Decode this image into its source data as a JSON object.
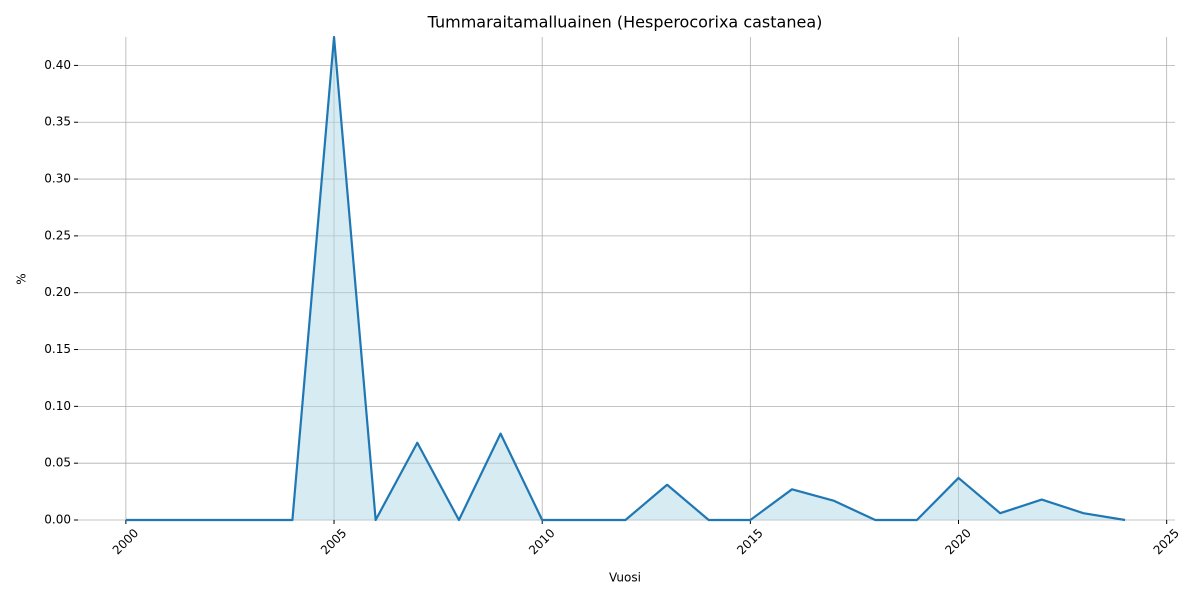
{
  "chart_data": {
    "type": "line",
    "title": "Tummaraitamalluainen (Hesperocorixa castanea)",
    "x_label": "Vuosi",
    "y_label": "%",
    "x": [
      2000,
      2001,
      2002,
      2003,
      2004,
      2005,
      2006,
      2007,
      2008,
      2009,
      2010,
      2011,
      2012,
      2013,
      2014,
      2015,
      2016,
      2017,
      2018,
      2019,
      2020,
      2021,
      2022,
      2023,
      2024
    ],
    "series": [
      {
        "color": "#1f77b4",
        "fill_color": "#add8e6",
        "values": [
          0,
          0,
          0,
          0,
          0,
          0.425,
          0,
          0.068,
          0,
          0.076,
          0,
          0,
          0,
          0.031,
          0,
          0,
          0.027,
          0.017,
          0,
          0,
          0.037,
          0.006,
          0.018,
          0.006,
          0
        ]
      }
    ],
    "xlim": [
      1998.85,
      2025.2
    ],
    "xticks": [
      2000,
      2005,
      2010,
      2015,
      2020,
      2025
    ],
    "ylim": [
      0,
      0.425
    ],
    "yticks": [
      {
        "value": 0,
        "label": "0.00"
      },
      {
        "value": 0.05,
        "label": "0.05"
      },
      {
        "value": 0.1,
        "label": "0.10"
      },
      {
        "value": 0.15,
        "label": "0.15"
      },
      {
        "value": 0.2,
        "label": "0.20"
      },
      {
        "value": 0.25,
        "label": "0.25"
      },
      {
        "value": 0.3,
        "label": "0.30"
      },
      {
        "value": 0.35,
        "label": "0.35"
      },
      {
        "value": 0.4,
        "label": "0.40"
      }
    ],
    "grid": true
  }
}
